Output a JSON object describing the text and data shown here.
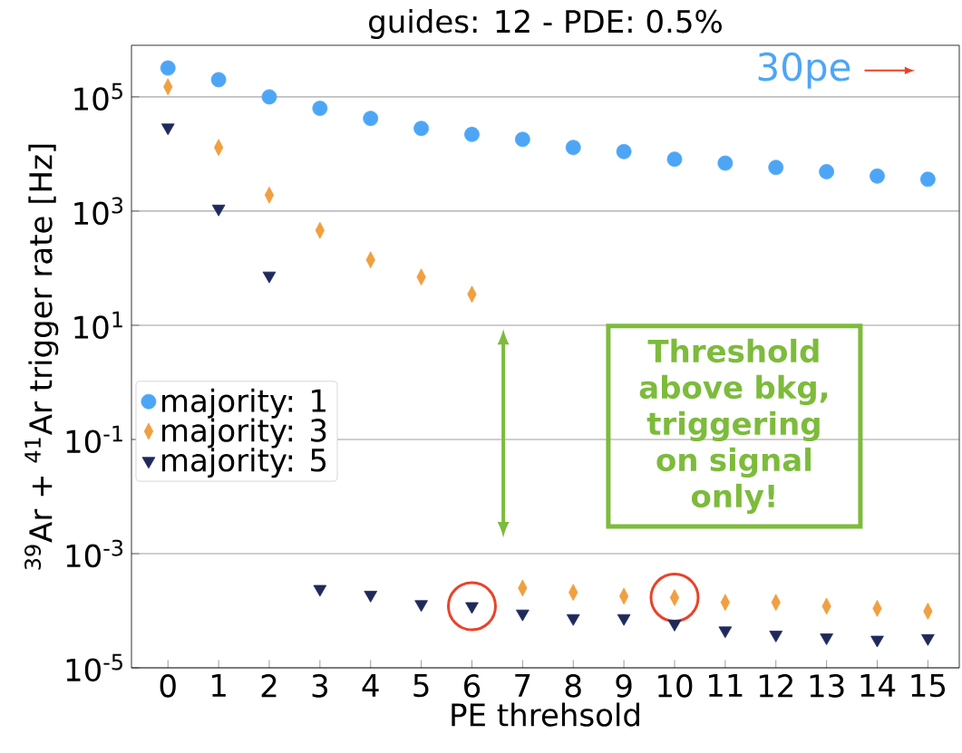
{
  "chart_data": {
    "type": "scatter",
    "title": "guides: 12 - PDE: 0.5%",
    "xlabel": "PE threhsold",
    "ylabel": "$^{39}$Ar + $^{41}$Ar trigger rate [Hz]",
    "x": [
      0,
      1,
      2,
      3,
      4,
      5,
      6,
      7,
      8,
      9,
      10,
      11,
      12,
      13,
      14,
      15
    ],
    "series": [
      {
        "name": "majority: 1",
        "color": "#4da6f5",
        "marker": "circle",
        "values": [
          320000,
          200000,
          100000,
          63000,
          42000,
          28000,
          22000,
          18000,
          13000,
          11000,
          8100,
          6900,
          5800,
          4900,
          4100,
          3600
        ]
      },
      {
        "name": "majority: 3",
        "color": "#f0a040",
        "marker": "diamond",
        "values": [
          150000,
          13000,
          1900,
          460,
          140,
          70,
          35,
          0.00025,
          0.00021,
          0.00018,
          0.00017,
          0.00014,
          0.00014,
          0.00012,
          0.00011,
          9.8e-05
        ]
      },
      {
        "name": "majority: 5",
        "color": "#1f2a5c",
        "marker": "triangle",
        "values": [
          29000,
          1100,
          74,
          0.00024,
          0.00019,
          0.00013,
          0.00012,
          8.9e-05,
          7.4e-05,
          7.4e-05,
          5.9e-05,
          4.5e-05,
          3.8e-05,
          3.4e-05,
          3.1e-05,
          3.3e-05
        ]
      }
    ],
    "xlim": [
      -0.72,
      15.62
    ],
    "xticks": [
      0,
      1,
      2,
      3,
      4,
      5,
      6,
      7,
      8,
      9,
      10,
      11,
      12,
      13,
      14,
      15
    ],
    "ylim": [
      1e-05,
      800000
    ],
    "log": "y",
    "yticks": [
      {
        "value": 1e-05,
        "label": "10$^{-5}$"
      },
      {
        "value": 0.001,
        "label": "10$^{-3}$"
      },
      {
        "value": 0.1,
        "label": "10$^{-1}$"
      },
      {
        "value": 10,
        "label": "10$^{1}$"
      },
      {
        "value": 1000,
        "label": "10$^{3}$"
      },
      {
        "value": 100000,
        "label": "10$^{5}$"
      }
    ],
    "grid": "y",
    "legend": "left",
    "annotations": [
      "30pe",
      "Threshold above bkg, triggering on signal only!"
    ]
  }
}
